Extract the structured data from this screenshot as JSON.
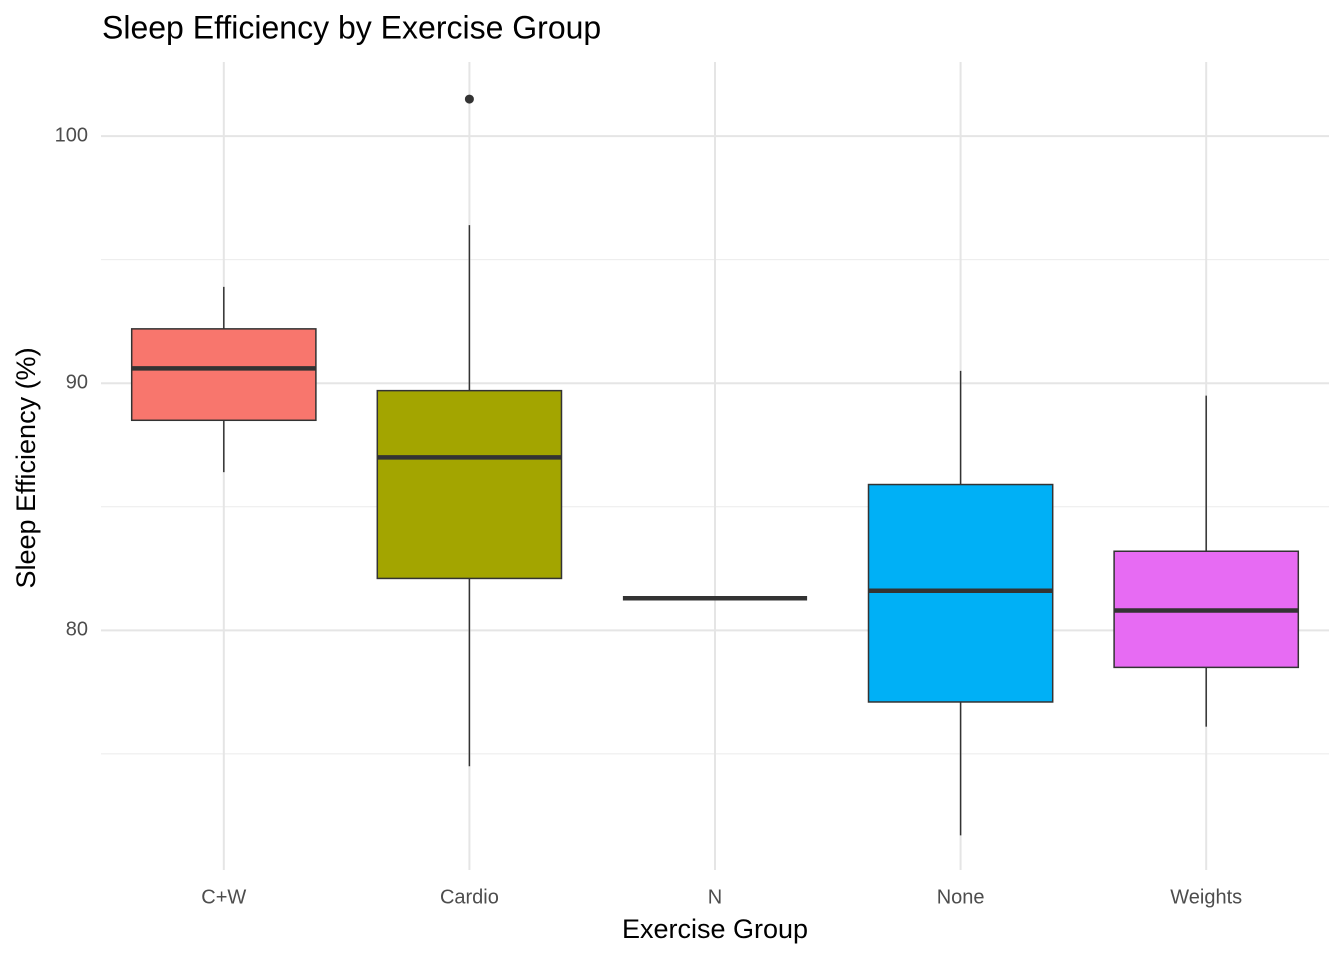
{
  "chart_data": {
    "type": "boxplot",
    "title": "Sleep Efficiency by Exercise Group",
    "x_label": "Exercise Group",
    "y_label": "Sleep Efficiency (%)",
    "categories": [
      "C+W",
      "Cardio",
      "N",
      "None",
      "Weights"
    ],
    "colors": [
      "#F8766D",
      "#A3A500",
      "#00BF7D",
      "#00B0F6",
      "#E76BF3"
    ],
    "whisker_low": [
      86.4,
      74.5,
      81.3,
      71.7,
      76.1
    ],
    "q1": [
      88.5,
      82.1,
      81.3,
      77.1,
      78.5
    ],
    "median": [
      90.6,
      87.0,
      81.3,
      81.6,
      80.8
    ],
    "q3": [
      92.2,
      89.7,
      81.3,
      85.9,
      83.2
    ],
    "whisker_high": [
      93.9,
      96.4,
      81.3,
      90.5,
      89.5
    ],
    "outliers": [
      [],
      [
        101.5
      ],
      [],
      [],
      []
    ],
    "ylim": [
      70.3,
      103.0
    ],
    "yticks": [
      80,
      90,
      100
    ],
    "minor_yticks": [
      75,
      85,
      95
    ],
    "grid": true
  }
}
